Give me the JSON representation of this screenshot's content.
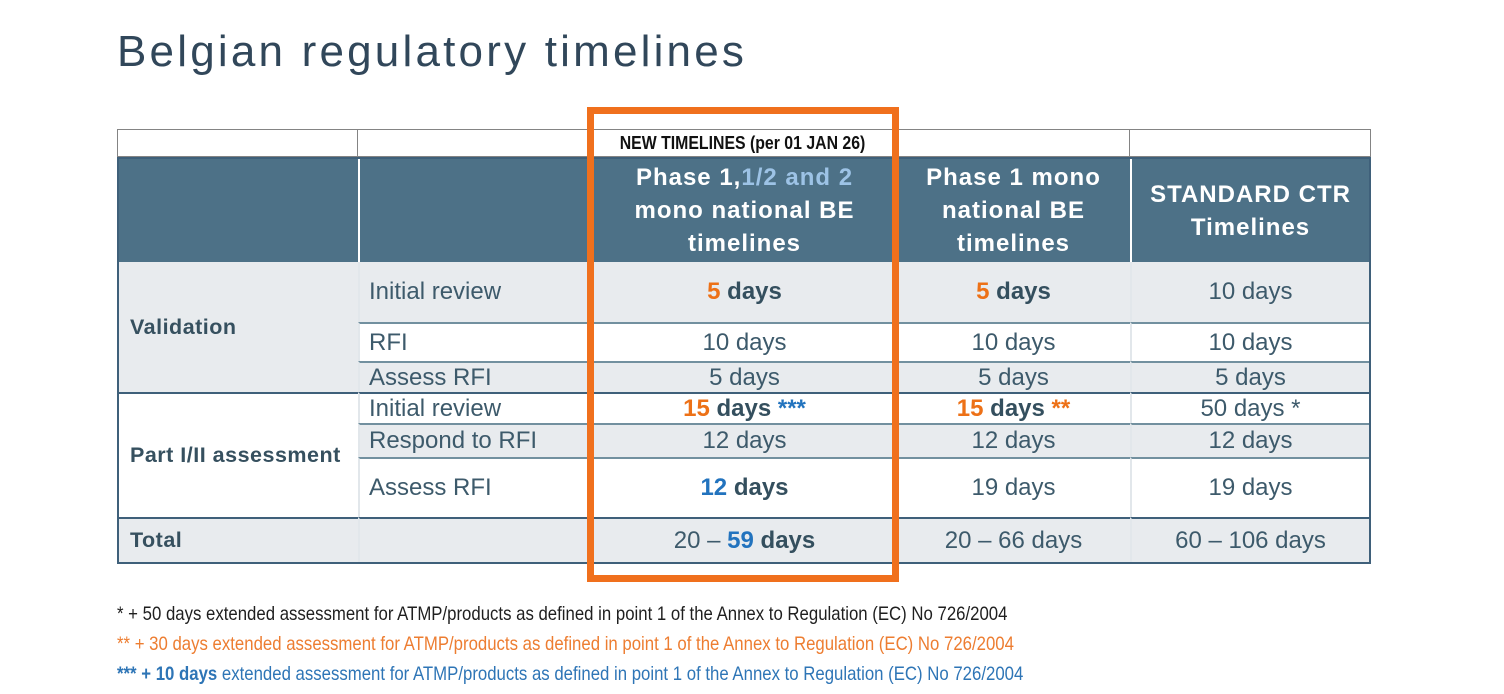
{
  "title": "Belgian regulatory timelines",
  "colors": {
    "header_bg": "#4d7187",
    "row_gray": "#e8ebee",
    "accent_orange": "#ed7117",
    "accent_blue": "#2273be",
    "light_blue": "#9dc3e6",
    "highlight_border": "#f0701d"
  },
  "table": {
    "banner": "NEW TIMELINES (per 01 JAN 26)",
    "headers": {
      "phase12": {
        "white": "Phase 1,",
        "blue": "1/2 and 2",
        "l2": "mono national BE",
        "l3": "timelines"
      },
      "phase1": {
        "l1": "Phase 1 mono",
        "l2": "national BE",
        "l3": "timelines"
      },
      "standard": {
        "l1": "STANDARD CTR",
        "l2": "Timelines"
      }
    },
    "groups": {
      "validation": "Validation",
      "part": "Part I/II assessment"
    },
    "rows": [
      {
        "label": "Initial review",
        "c3_num": "5",
        "c3_tail": " days",
        "c4_num": "5",
        "c4_tail": " days",
        "c5": "10 days"
      },
      {
        "label": "RFI",
        "c3": "10 days",
        "c4": "10 days",
        "c5": "10 days"
      },
      {
        "label": "Assess RFI",
        "c3": "5 days",
        "c4": "5 days",
        "c5": "5 days"
      },
      {
        "label": "Initial review",
        "c3_num": "15",
        "c3_tail": " days",
        "c3_star": " ***",
        "c4_num": "15",
        "c4_tail": " days",
        "c4_star": " **",
        "c5": "50 days *"
      },
      {
        "label": "Respond to RFI",
        "c3": "12 days",
        "c4": "12 days",
        "c5": "12 days"
      },
      {
        "label": "Assess RFI",
        "c3_num": "12",
        "c3_tail": " days",
        "c4": "19 days",
        "c5": "19 days"
      }
    ],
    "total": {
      "label": "Total",
      "c3_pre": "20 – ",
      "c3_num": "59",
      "c3_tail": " days",
      "c4": "20 – 66 days",
      "c5": "60 – 106 days"
    }
  },
  "footnotes": [
    {
      "text": "* + 50 days extended assessment for ATMP/products as defined in point 1 of the Annex to Regulation (EC) No 726/2004"
    },
    {
      "text": "** + 30 days extended assessment for ATMP/products as defined in point 1 of the Annex to Regulation (EC) No 726/2004"
    },
    {
      "bold": "*** + 10 days",
      "rest": " extended assessment for ATMP/products as defined in point 1 of the Annex to Regulation (EC) No 726/2004"
    }
  ]
}
